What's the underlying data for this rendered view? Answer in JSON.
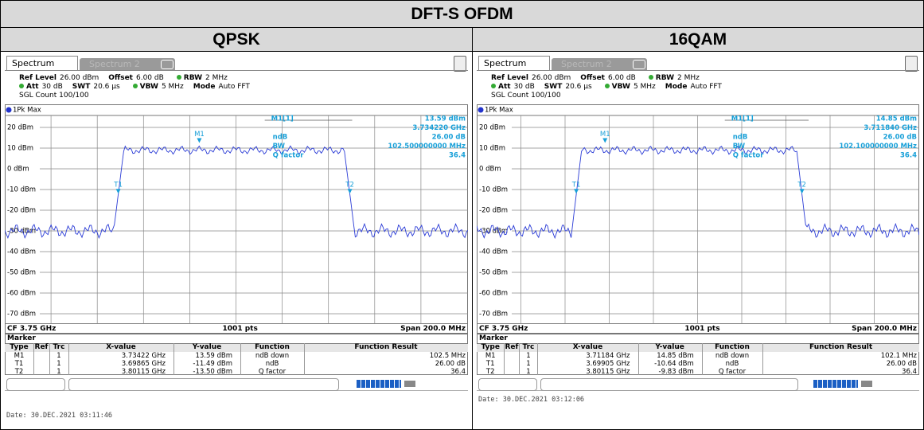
{
  "header": {
    "title": "DFT-S OFDM"
  },
  "panels": [
    {
      "title": "QPSK",
      "tabs": [
        "Spectrum",
        "Spectrum 2"
      ],
      "params": [
        [
          "Ref Level",
          "26.00 dBm",
          "Offset",
          "6.00 dB",
          "RBW",
          "2 MHz"
        ],
        [
          "Att",
          "30 dB",
          "SWT",
          "20.6 µs",
          "VBW",
          "5 MHz",
          "Mode",
          "Auto FFT"
        ],
        [
          "SGL Count 100/100"
        ]
      ],
      "trace": "1Pk Max",
      "y_labels": [
        "20 dBm",
        "10 dBm",
        "0 dBm",
        "-10 dBm",
        "-20 dBm",
        "-30 dBm",
        "-40 dBm",
        "-50 dBm",
        "-60 dBm",
        "-70 dBm"
      ],
      "plot_markers": [
        "M1",
        "T1",
        "T2"
      ],
      "readout": [
        [
          "M1[1]",
          "13.59 dBm"
        ],
        [
          "",
          "3.734220 GHz"
        ],
        [
          "ndB",
          "26.00 dB"
        ],
        [
          "BW",
          "102.500000000 MHz"
        ],
        [
          "Q factor",
          "36.4"
        ]
      ],
      "footer": [
        "CF 3.75 GHz",
        "1001 pts",
        "Span 200.0 MHz"
      ],
      "table": {
        "title": "Marker",
        "columns": [
          "Type",
          "Ref",
          "Trc",
          "X-value",
          "Y-value",
          "Function",
          "Function Result"
        ],
        "rows": [
          [
            "M1",
            "",
            "1",
            "3.73422 GHz",
            "13.59 dBm",
            "ndB down",
            "102.5 MHz"
          ],
          [
            "T1",
            "",
            "1",
            "3.69865 GHz",
            "-11.49 dBm",
            "ndB",
            "26.00 dB"
          ],
          [
            "T2",
            "",
            "1",
            "3.80115 GHz",
            "-13.50 dBm",
            "Q factor",
            "36.4"
          ]
        ]
      },
      "date": "Date: 30.DEC.2021  03:11:46"
    },
    {
      "title": "16QAM",
      "tabs": [
        "Spectrum",
        "Spectrum 2"
      ],
      "params": [
        [
          "Ref Level",
          "26.00 dBm",
          "Offset",
          "6.00 dB",
          "RBW",
          "2 MHz"
        ],
        [
          "Att",
          "30 dB",
          "SWT",
          "20.6 µs",
          "VBW",
          "5 MHz",
          "Mode",
          "Auto FFT"
        ],
        [
          "SGL Count 100/100"
        ]
      ],
      "trace": "1Pk Max",
      "y_labels": [
        "20 dBm",
        "10 dBm",
        "0 dBm",
        "-10 dBm",
        "-20 dBm",
        "-30 dBm",
        "-40 dBm",
        "-50 dBm",
        "-60 dBm",
        "-70 dBm"
      ],
      "plot_markers": [
        "M1",
        "T1",
        "T2"
      ],
      "readout": [
        [
          "M1[1]",
          "14.85 dBm"
        ],
        [
          "",
          "3.711840 GHz"
        ],
        [
          "ndB",
          "26.00 dB"
        ],
        [
          "BW",
          "102.100000000 MHz"
        ],
        [
          "Q factor",
          "36.4"
        ]
      ],
      "footer": [
        "CF 3.75 GHz",
        "1001 pts",
        "Span 200.0 MHz"
      ],
      "table": {
        "title": "Marker",
        "columns": [
          "Type",
          "Ref",
          "Trc",
          "X-value",
          "Y-value",
          "Function",
          "Function Result"
        ],
        "rows": [
          [
            "M1",
            "",
            "1",
            "3.71184 GHz",
            "14.85 dBm",
            "ndB down",
            "102.1 MHz"
          ],
          [
            "T1",
            "",
            "1",
            "3.69905 GHz",
            "-10.64 dBm",
            "ndB",
            "26.00 dB"
          ],
          [
            "T2",
            "",
            "1",
            "3.80115 GHz",
            "-9.83 dBm",
            "Q factor",
            "36.4"
          ]
        ]
      },
      "date": "Date: 30.DEC.2021  03:12:06"
    }
  ]
}
